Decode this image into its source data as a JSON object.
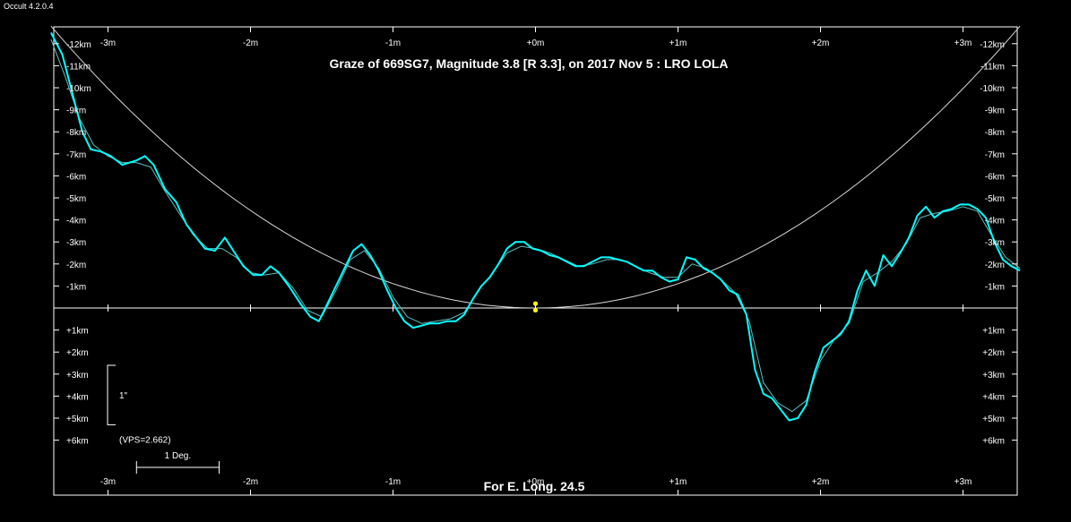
{
  "window": {
    "app_title": "Occult 4.2.0.4"
  },
  "chart_data": {
    "type": "line",
    "title": "Graze of  669SG7,  Magnitude 3.8 [R 3.3],  on 2017 Nov  5  :  LRO LOLA",
    "footer": "For E. Long. 24.5",
    "x_axis": {
      "unit": "minutes",
      "range": [
        -3.4,
        3.4
      ],
      "ticks": [
        {
          "value": -3,
          "label": "-3m"
        },
        {
          "value": -2,
          "label": "-2m"
        },
        {
          "value": -1,
          "label": "-1m"
        },
        {
          "value": 0,
          "label": "+0m"
        },
        {
          "value": 1,
          "label": "+1m"
        },
        {
          "value": 2,
          "label": "+2m"
        },
        {
          "value": 3,
          "label": "+3m"
        }
      ]
    },
    "y_axis": {
      "unit": "km",
      "range": [
        -12.8,
        8.5
      ],
      "ticks": [
        {
          "value": -12,
          "label": "-12km"
        },
        {
          "value": -11,
          "label": "-11km"
        },
        {
          "value": -10,
          "label": "-10km"
        },
        {
          "value": -9,
          "label": "-9km"
        },
        {
          "value": -8,
          "label": "-8km"
        },
        {
          "value": -7,
          "label": "-7km"
        },
        {
          "value": -6,
          "label": "-6km"
        },
        {
          "value": -5,
          "label": "-5km"
        },
        {
          "value": -4,
          "label": "-4km"
        },
        {
          "value": -3,
          "label": "-3km"
        },
        {
          "value": -2,
          "label": "-2km"
        },
        {
          "value": -1,
          "label": "-1km"
        },
        {
          "value": 1,
          "label": "+1km"
        },
        {
          "value": 2,
          "label": "+2km"
        },
        {
          "value": 3,
          "label": "+3km"
        },
        {
          "value": 4,
          "label": "+4km"
        },
        {
          "value": 5,
          "label": "+5km"
        },
        {
          "value": 6,
          "label": "+6km"
        }
      ]
    },
    "scale_bar_vertical": {
      "label": "1\"",
      "from_km": 2.6,
      "to_km": 5.3
    },
    "vps_label": "(VPS=2.662)",
    "scale_bar_horizontal": {
      "label": "1 Deg.",
      "from_min": -2.8,
      "to_min": -2.22
    },
    "star_track": {
      "type": "parabola",
      "vertex": [
        0,
        0
      ],
      "value_at_x_3.4": -12.8
    },
    "star_markers": [
      {
        "x": 0,
        "y": 0.1,
        "color": "#ffff00"
      },
      {
        "x": 0,
        "y": -0.2,
        "color": "#ffff00"
      }
    ],
    "series": [
      {
        "color": "#00ffff",
        "points": [
          [
            -3.4,
            -12.5
          ],
          [
            -3.32,
            -11.5
          ],
          [
            -3.24,
            -9.5
          ],
          [
            -3.18,
            -8.0
          ],
          [
            -3.12,
            -7.2
          ],
          [
            -3.05,
            -7.1
          ],
          [
            -2.98,
            -6.9
          ],
          [
            -2.9,
            -6.5
          ],
          [
            -2.8,
            -6.7
          ],
          [
            -2.74,
            -6.9
          ],
          [
            -2.68,
            -6.5
          ],
          [
            -2.6,
            -5.4
          ],
          [
            -2.52,
            -4.8
          ],
          [
            -2.45,
            -3.8
          ],
          [
            -2.38,
            -3.2
          ],
          [
            -2.32,
            -2.7
          ],
          [
            -2.25,
            -2.6
          ],
          [
            -2.18,
            -3.2
          ],
          [
            -2.12,
            -2.6
          ],
          [
            -2.05,
            -1.9
          ],
          [
            -1.98,
            -1.5
          ],
          [
            -1.92,
            -1.5
          ],
          [
            -1.86,
            -1.9
          ],
          [
            -1.8,
            -1.6
          ],
          [
            -1.72,
            -0.9
          ],
          [
            -1.65,
            -0.2
          ],
          [
            -1.58,
            0.4
          ],
          [
            -1.52,
            0.6
          ],
          [
            -1.46,
            -0.2
          ],
          [
            -1.4,
            -1.0
          ],
          [
            -1.34,
            -1.8
          ],
          [
            -1.28,
            -2.6
          ],
          [
            -1.22,
            -2.9
          ],
          [
            -1.16,
            -2.4
          ],
          [
            -1.1,
            -1.7
          ],
          [
            -1.04,
            -0.8
          ],
          [
            -0.98,
            0.0
          ],
          [
            -0.92,
            0.6
          ],
          [
            -0.86,
            0.9
          ],
          [
            -0.8,
            0.8
          ],
          [
            -0.74,
            0.7
          ],
          [
            -0.68,
            0.7
          ],
          [
            -0.62,
            0.6
          ],
          [
            -0.56,
            0.6
          ],
          [
            -0.5,
            0.3
          ],
          [
            -0.44,
            -0.4
          ],
          [
            -0.38,
            -1.0
          ],
          [
            -0.32,
            -1.4
          ],
          [
            -0.26,
            -2.0
          ],
          [
            -0.2,
            -2.7
          ],
          [
            -0.14,
            -3.0
          ],
          [
            -0.08,
            -3.0
          ],
          [
            -0.02,
            -2.7
          ],
          [
            0.04,
            -2.6
          ],
          [
            0.1,
            -2.4
          ],
          [
            0.16,
            -2.3
          ],
          [
            0.22,
            -2.1
          ],
          [
            0.28,
            -1.9
          ],
          [
            0.34,
            -1.9
          ],
          [
            0.4,
            -2.1
          ],
          [
            0.46,
            -2.3
          ],
          [
            0.52,
            -2.3
          ],
          [
            0.58,
            -2.2
          ],
          [
            0.64,
            -2.1
          ],
          [
            0.7,
            -1.9
          ],
          [
            0.76,
            -1.7
          ],
          [
            0.82,
            -1.7
          ],
          [
            0.88,
            -1.4
          ],
          [
            0.94,
            -1.2
          ],
          [
            1.0,
            -1.3
          ],
          [
            1.06,
            -2.3
          ],
          [
            1.12,
            -2.2
          ],
          [
            1.18,
            -1.8
          ],
          [
            1.24,
            -1.6
          ],
          [
            1.3,
            -1.3
          ],
          [
            1.36,
            -0.8
          ],
          [
            1.42,
            -0.6
          ],
          [
            1.48,
            0.3
          ],
          [
            1.54,
            2.8
          ],
          [
            1.6,
            3.9
          ],
          [
            1.66,
            4.1
          ],
          [
            1.72,
            4.6
          ],
          [
            1.78,
            5.1
          ],
          [
            1.84,
            5.0
          ],
          [
            1.9,
            4.4
          ],
          [
            1.96,
            2.9
          ],
          [
            2.02,
            1.8
          ],
          [
            2.08,
            1.5
          ],
          [
            2.14,
            1.2
          ],
          [
            2.2,
            0.6
          ],
          [
            2.26,
            -0.8
          ],
          [
            2.32,
            -1.7
          ],
          [
            2.38,
            -1.0
          ],
          [
            2.44,
            -2.4
          ],
          [
            2.5,
            -1.9
          ],
          [
            2.56,
            -2.5
          ],
          [
            2.62,
            -3.2
          ],
          [
            2.68,
            -4.2
          ],
          [
            2.74,
            -4.6
          ],
          [
            2.8,
            -4.1
          ],
          [
            2.86,
            -4.4
          ],
          [
            2.92,
            -4.5
          ],
          [
            2.98,
            -4.7
          ],
          [
            3.04,
            -4.7
          ],
          [
            3.1,
            -4.5
          ],
          [
            3.16,
            -4.1
          ],
          [
            3.22,
            -3.0
          ],
          [
            3.28,
            -2.2
          ],
          [
            3.34,
            -1.9
          ],
          [
            3.4,
            -1.7
          ]
        ]
      },
      {
        "color": "#5fbfbf",
        "points": [
          [
            -3.4,
            -12.2
          ],
          [
            -3.3,
            -10.5
          ],
          [
            -3.2,
            -8.6
          ],
          [
            -3.1,
            -7.4
          ],
          [
            -3.0,
            -6.9
          ],
          [
            -2.9,
            -6.6
          ],
          [
            -2.8,
            -6.6
          ],
          [
            -2.7,
            -6.4
          ],
          [
            -2.6,
            -5.3
          ],
          [
            -2.5,
            -4.3
          ],
          [
            -2.4,
            -3.3
          ],
          [
            -2.3,
            -2.7
          ],
          [
            -2.2,
            -2.7
          ],
          [
            -2.1,
            -2.3
          ],
          [
            -2.0,
            -1.6
          ],
          [
            -1.9,
            -1.5
          ],
          [
            -1.8,
            -1.6
          ],
          [
            -1.7,
            -0.9
          ],
          [
            -1.6,
            0.1
          ],
          [
            -1.5,
            0.4
          ],
          [
            -1.4,
            -0.8
          ],
          [
            -1.3,
            -2.2
          ],
          [
            -1.2,
            -2.6
          ],
          [
            -1.1,
            -1.8
          ],
          [
            -1.0,
            -0.5
          ],
          [
            -0.9,
            0.4
          ],
          [
            -0.8,
            0.7
          ],
          [
            -0.7,
            0.6
          ],
          [
            -0.6,
            0.5
          ],
          [
            -0.5,
            0.2
          ],
          [
            -0.4,
            -0.8
          ],
          [
            -0.3,
            -1.6
          ],
          [
            -0.2,
            -2.5
          ],
          [
            -0.1,
            -2.8
          ],
          [
            0.0,
            -2.7
          ],
          [
            0.1,
            -2.5
          ],
          [
            0.2,
            -2.2
          ],
          [
            0.3,
            -1.9
          ],
          [
            0.4,
            -2.0
          ],
          [
            0.5,
            -2.2
          ],
          [
            0.6,
            -2.2
          ],
          [
            0.7,
            -1.9
          ],
          [
            0.8,
            -1.6
          ],
          [
            0.9,
            -1.4
          ],
          [
            1.0,
            -1.4
          ],
          [
            1.1,
            -2.0
          ],
          [
            1.2,
            -1.8
          ],
          [
            1.3,
            -1.3
          ],
          [
            1.4,
            -0.7
          ],
          [
            1.5,
            0.6
          ],
          [
            1.6,
            3.4
          ],
          [
            1.7,
            4.3
          ],
          [
            1.8,
            4.7
          ],
          [
            1.9,
            4.2
          ],
          [
            2.0,
            2.4
          ],
          [
            2.1,
            1.4
          ],
          [
            2.2,
            0.7
          ],
          [
            2.3,
            -1.2
          ],
          [
            2.4,
            -1.6
          ],
          [
            2.5,
            -2.1
          ],
          [
            2.6,
            -2.9
          ],
          [
            2.7,
            -4.1
          ],
          [
            2.8,
            -4.3
          ],
          [
            2.9,
            -4.4
          ],
          [
            3.0,
            -4.6
          ],
          [
            3.1,
            -4.4
          ],
          [
            3.2,
            -3.3
          ],
          [
            3.3,
            -2.3
          ],
          [
            3.4,
            -1.8
          ]
        ]
      }
    ]
  }
}
